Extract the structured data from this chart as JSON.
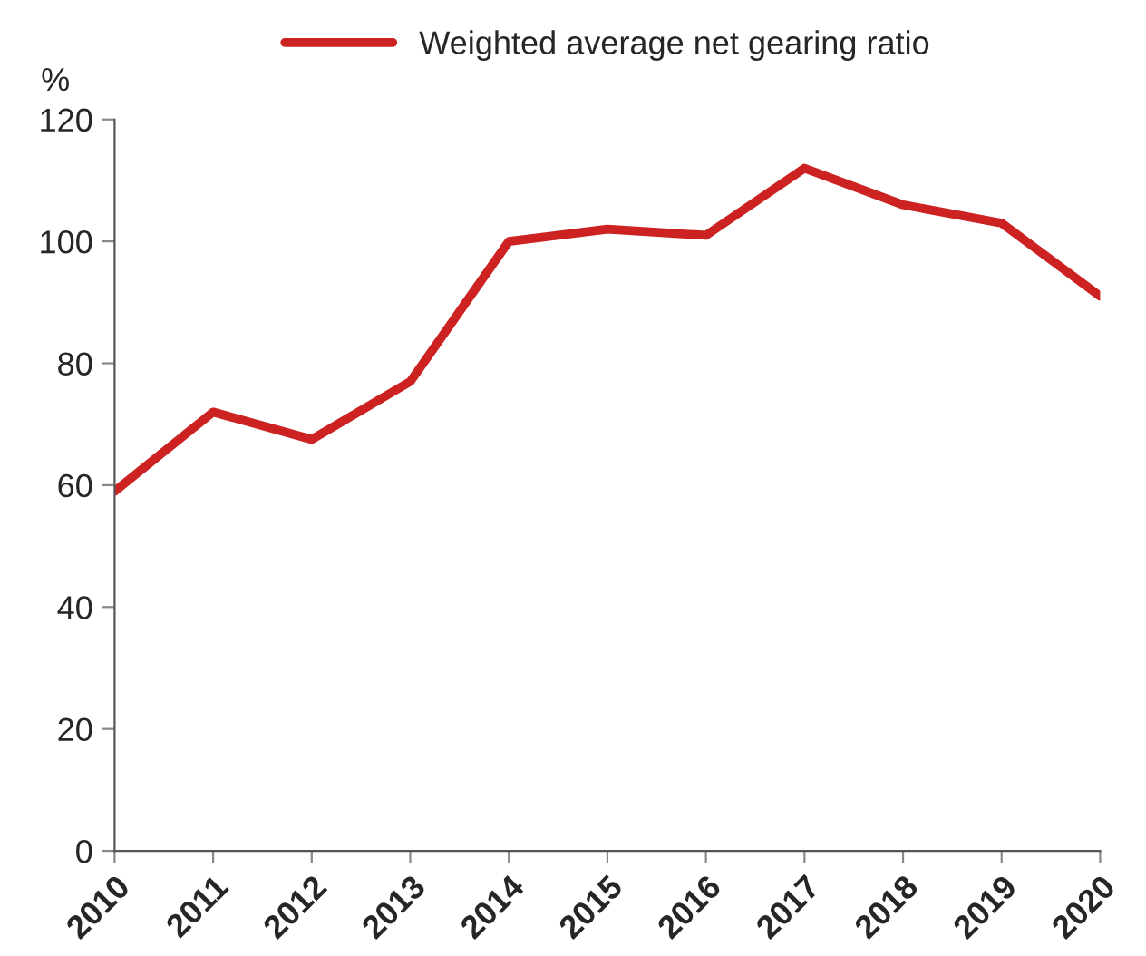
{
  "chart_data": {
    "type": "line",
    "ylabel": "%",
    "x": [
      2010,
      2011,
      2012,
      2013,
      2014,
      2015,
      2016,
      2017,
      2018,
      2019,
      2020
    ],
    "series": [
      {
        "name": "Weighted average net gearing ratio",
        "color": "#cc2222",
        "values": [
          59,
          72,
          67.5,
          77,
          100,
          102,
          101,
          112,
          106,
          103,
          91
        ]
      }
    ],
    "xlim": [
      2010,
      2020
    ],
    "xticks": [
      2010,
      2011,
      2012,
      2013,
      2014,
      2015,
      2016,
      2017,
      2018,
      2019,
      2020
    ],
    "ylim": [
      0,
      120
    ],
    "yticks": [
      0,
      20,
      40,
      60,
      80,
      100,
      120
    ],
    "grid": false,
    "legend": "top",
    "marker": "none",
    "line_style": "solid"
  }
}
